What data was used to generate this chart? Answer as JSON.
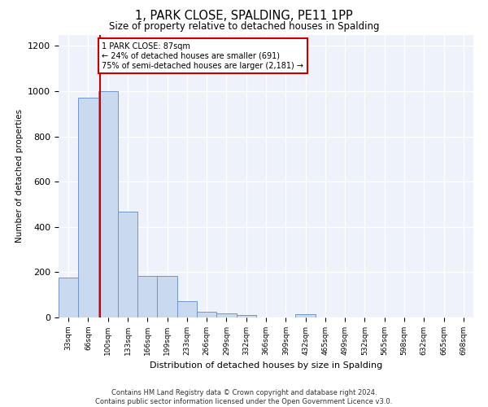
{
  "title": "1, PARK CLOSE, SPALDING, PE11 1PP",
  "subtitle": "Size of property relative to detached houses in Spalding",
  "xlabel": "Distribution of detached houses by size in Spalding",
  "ylabel": "Number of detached properties",
  "footnote1": "Contains HM Land Registry data © Crown copyright and database right 2024.",
  "footnote2": "Contains public sector information licensed under the Open Government Licence v3.0.",
  "annotation_line1": "1 PARK CLOSE: 87sqm",
  "annotation_line2": "← 24% of detached houses are smaller (691)",
  "annotation_line3": "75% of semi-detached houses are larger (2,181) →",
  "bar_color": "#c9d9f0",
  "bar_edge_color": "#7096c8",
  "red_line_color": "#cc0000",
  "background_color": "#eef2fb",
  "grid_color": "#ffffff",
  "categories": [
    "33sqm",
    "66sqm",
    "100sqm",
    "133sqm",
    "166sqm",
    "199sqm",
    "233sqm",
    "266sqm",
    "299sqm",
    "332sqm",
    "366sqm",
    "399sqm",
    "432sqm",
    "465sqm",
    "499sqm",
    "532sqm",
    "565sqm",
    "598sqm",
    "632sqm",
    "665sqm",
    "698sqm"
  ],
  "bar_heights": [
    175,
    970,
    1000,
    467,
    185,
    185,
    72,
    25,
    18,
    12,
    0,
    0,
    13,
    0,
    0,
    0,
    0,
    0,
    0,
    0,
    0
  ],
  "ylim": [
    0,
    1250
  ],
  "yticks": [
    0,
    200,
    400,
    600,
    800,
    1000,
    1200
  ],
  "property_sqm": 87
}
